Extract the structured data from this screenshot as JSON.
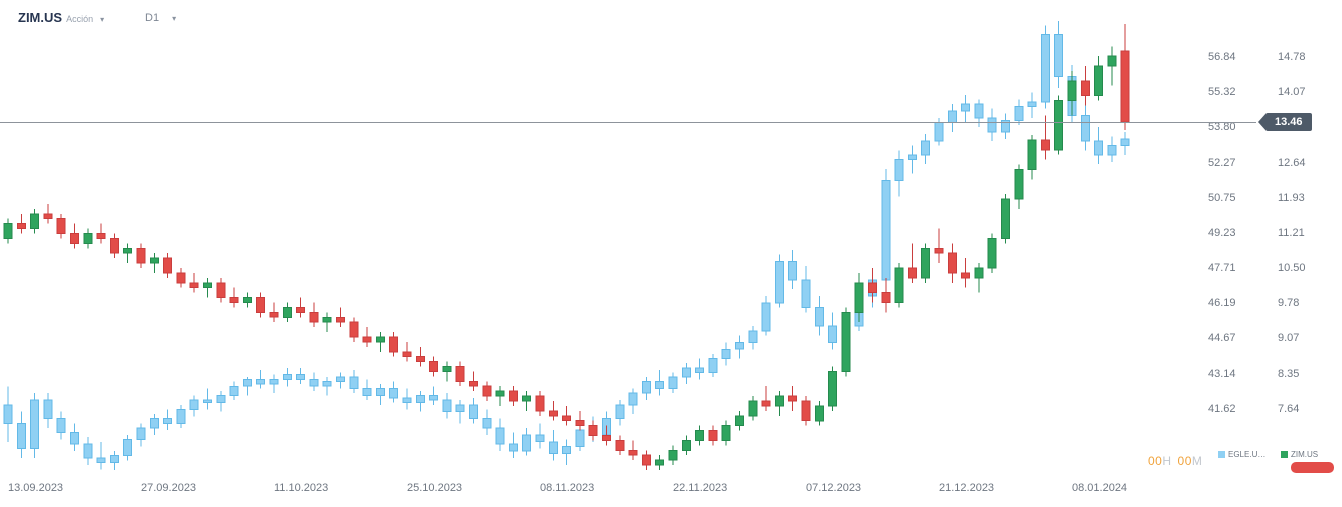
{
  "header": {
    "symbol": "ZIM.US",
    "instrument_label": "Acción",
    "timeframe": "D1"
  },
  "current_price_badge": {
    "value": "13.46"
  },
  "countdown": {
    "h_value": "00",
    "h_unit": "H",
    "m_value": "00",
    "m_unit": "M"
  },
  "legend": {
    "items": [
      {
        "label": "EGLE.U…",
        "color": "#8fd0f3"
      },
      {
        "label": "ZIM.US",
        "color": "#2fa45e"
      }
    ],
    "pill_color": "#e24c48"
  },
  "colors": {
    "up": "#2fa45e",
    "down": "#e24c48",
    "comparison": "#8fd0f3",
    "price_line": "#8d939b",
    "badge_bg": "#4e5a68",
    "tick_text": "#6e7681",
    "countdown_orange": "#f0a33c"
  },
  "chart_data": {
    "type": "candlestick",
    "timeframe": "D1",
    "title": "ZIM.US daily candles with EGLE.US comparison overlay",
    "grid": false,
    "current_price": 13.46,
    "x_labels": [
      {
        "index": 0,
        "label": "13.09.2023"
      },
      {
        "index": 10,
        "label": "27.09.2023"
      },
      {
        "index": 20,
        "label": "11.10.2023"
      },
      {
        "index": 30,
        "label": "25.10.2023"
      },
      {
        "index": 40,
        "label": "08.11.2023"
      },
      {
        "index": 50,
        "label": "22.11.2023"
      },
      {
        "index": 60,
        "label": "07.12.2023"
      },
      {
        "index": 70,
        "label": "21.12.2023"
      },
      {
        "index": 80,
        "label": "08.01.2024"
      }
    ],
    "axes": {
      "egle": {
        "min": 38.98,
        "max": 59.3,
        "ticks": [
          56.84,
          55.32,
          53.8,
          52.27,
          50.75,
          49.23,
          47.71,
          46.19,
          44.67,
          43.14,
          41.62
        ]
      },
      "zim": {
        "min": 6.4,
        "max": 15.94,
        "ticks": [
          14.78,
          14.07,
          12.64,
          11.93,
          11.21,
          10.5,
          9.78,
          9.07,
          8.35,
          7.64
        ]
      }
    },
    "series": [
      {
        "name": "EGLE.US",
        "axis": "egle",
        "up_fill": "#8fd0f3",
        "down_fill": "#8fd0f3",
        "up_stroke": "#63b9e7",
        "down_stroke": "#63b9e7",
        "candles": [
          [
            41.8,
            42.6,
            40.2,
            41.0
          ],
          [
            41.0,
            41.5,
            39.5,
            39.9
          ],
          [
            39.9,
            42.3,
            39.5,
            42.0
          ],
          [
            42.0,
            42.3,
            40.8,
            41.2
          ],
          [
            41.2,
            41.5,
            40.3,
            40.6
          ],
          [
            40.6,
            41.0,
            39.8,
            40.1
          ],
          [
            40.1,
            40.4,
            39.2,
            39.5
          ],
          [
            39.5,
            40.2,
            39.0,
            39.3
          ],
          [
            39.3,
            39.8,
            38.9,
            39.6
          ],
          [
            39.6,
            40.5,
            39.4,
            40.3
          ],
          [
            40.3,
            41.0,
            40.0,
            40.8
          ],
          [
            40.8,
            41.4,
            40.5,
            41.2
          ],
          [
            41.2,
            41.6,
            40.7,
            41.0
          ],
          [
            41.0,
            41.8,
            40.8,
            41.6
          ],
          [
            41.6,
            42.2,
            41.3,
            42.0
          ],
          [
            42.0,
            42.5,
            41.6,
            41.9
          ],
          [
            41.9,
            42.4,
            41.5,
            42.2
          ],
          [
            42.2,
            42.8,
            42.0,
            42.6
          ],
          [
            42.6,
            43.0,
            42.2,
            42.9
          ],
          [
            42.9,
            43.3,
            42.5,
            42.7
          ],
          [
            42.7,
            43.1,
            42.3,
            42.9
          ],
          [
            42.9,
            43.4,
            42.6,
            43.1
          ],
          [
            43.1,
            43.4,
            42.7,
            42.9
          ],
          [
            42.9,
            43.2,
            42.4,
            42.6
          ],
          [
            42.6,
            43.0,
            42.2,
            42.8
          ],
          [
            42.8,
            43.2,
            42.5,
            43.0
          ],
          [
            43.0,
            43.3,
            42.3,
            42.5
          ],
          [
            42.5,
            42.9,
            42.0,
            42.2
          ],
          [
            42.2,
            42.7,
            41.8,
            42.5
          ],
          [
            42.5,
            42.8,
            41.9,
            42.1
          ],
          [
            42.1,
            42.5,
            41.6,
            41.9
          ],
          [
            41.9,
            42.4,
            41.5,
            42.2
          ],
          [
            42.2,
            42.6,
            41.8,
            42.0
          ],
          [
            42.0,
            42.3,
            41.2,
            41.5
          ],
          [
            41.5,
            42.0,
            41.0,
            41.8
          ],
          [
            41.8,
            42.1,
            41.0,
            41.2
          ],
          [
            41.2,
            41.6,
            40.5,
            40.8
          ],
          [
            40.8,
            41.2,
            39.8,
            40.1
          ],
          [
            40.1,
            40.6,
            39.5,
            39.8
          ],
          [
            39.8,
            40.8,
            39.6,
            40.5
          ],
          [
            40.5,
            41.0,
            39.9,
            40.2
          ],
          [
            40.2,
            40.7,
            39.4,
            39.7
          ],
          [
            39.7,
            40.3,
            39.2,
            40.0
          ],
          [
            40.0,
            40.9,
            39.8,
            40.7
          ],
          [
            40.7,
            41.3,
            40.2,
            40.5
          ],
          [
            40.5,
            41.5,
            40.3,
            41.2
          ],
          [
            41.2,
            42.0,
            40.9,
            41.8
          ],
          [
            41.8,
            42.5,
            41.4,
            42.3
          ],
          [
            42.3,
            43.0,
            42.0,
            42.8
          ],
          [
            42.8,
            43.3,
            42.2,
            42.5
          ],
          [
            42.5,
            43.2,
            42.3,
            43.0
          ],
          [
            43.0,
            43.6,
            42.7,
            43.4
          ],
          [
            43.4,
            43.8,
            42.9,
            43.2
          ],
          [
            43.2,
            44.0,
            43.0,
            43.8
          ],
          [
            43.8,
            44.5,
            43.5,
            44.2
          ],
          [
            44.2,
            44.8,
            43.8,
            44.5
          ],
          [
            44.5,
            45.2,
            44.2,
            45.0
          ],
          [
            45.0,
            46.5,
            44.8,
            46.2
          ],
          [
            46.2,
            48.3,
            46.0,
            48.0
          ],
          [
            48.0,
            48.5,
            46.8,
            47.2
          ],
          [
            47.2,
            47.8,
            45.8,
            46.0
          ],
          [
            46.0,
            46.5,
            44.8,
            45.2
          ],
          [
            45.2,
            45.8,
            44.2,
            44.5
          ],
          [
            44.5,
            45.5,
            44.0,
            45.2
          ],
          [
            45.2,
            46.8,
            45.0,
            46.5
          ],
          [
            46.5,
            47.5,
            46.0,
            47.2
          ],
          [
            47.2,
            52.0,
            47.0,
            51.5
          ],
          [
            51.5,
            52.8,
            50.8,
            52.4
          ],
          [
            52.4,
            53.0,
            51.8,
            52.6
          ],
          [
            52.6,
            53.5,
            52.2,
            53.2
          ],
          [
            53.2,
            54.2,
            53.0,
            54.0
          ],
          [
            54.0,
            54.8,
            53.6,
            54.5
          ],
          [
            54.5,
            55.2,
            54.0,
            54.8
          ],
          [
            54.8,
            55.0,
            53.8,
            54.2
          ],
          [
            54.2,
            54.6,
            53.2,
            53.6
          ],
          [
            53.6,
            54.4,
            53.3,
            54.1
          ],
          [
            54.1,
            55.0,
            53.9,
            54.7
          ],
          [
            54.7,
            55.3,
            54.2,
            54.9
          ],
          [
            54.9,
            58.2,
            54.6,
            57.8
          ],
          [
            57.8,
            58.4,
            55.5,
            56.0
          ],
          [
            56.0,
            56.5,
            54.0,
            54.3
          ],
          [
            54.3,
            54.8,
            52.8,
            53.2
          ],
          [
            53.2,
            53.8,
            52.2,
            52.6
          ],
          [
            52.6,
            53.4,
            52.3,
            53.0
          ],
          [
            53.0,
            53.6,
            52.6,
            53.3
          ]
        ]
      },
      {
        "name": "ZIM.US",
        "axis": "zim",
        "up_fill": "#2fa45e",
        "down_fill": "#e24c48",
        "up_stroke": "#258a4e",
        "down_stroke": "#c93e3e",
        "candles": [
          [
            11.1,
            11.5,
            11.0,
            11.4
          ],
          [
            11.4,
            11.6,
            11.2,
            11.3
          ],
          [
            11.3,
            11.7,
            11.2,
            11.6
          ],
          [
            11.6,
            11.8,
            11.4,
            11.5
          ],
          [
            11.5,
            11.6,
            11.1,
            11.2
          ],
          [
            11.2,
            11.4,
            10.9,
            11.0
          ],
          [
            11.0,
            11.3,
            10.9,
            11.2
          ],
          [
            11.2,
            11.4,
            11.0,
            11.1
          ],
          [
            11.1,
            11.2,
            10.7,
            10.8
          ],
          [
            10.8,
            11.0,
            10.6,
            10.9
          ],
          [
            10.9,
            11.0,
            10.5,
            10.6
          ],
          [
            10.6,
            10.8,
            10.4,
            10.7
          ],
          [
            10.7,
            10.8,
            10.3,
            10.4
          ],
          [
            10.4,
            10.5,
            10.1,
            10.2
          ],
          [
            10.2,
            10.4,
            10.0,
            10.1
          ],
          [
            10.1,
            10.3,
            9.9,
            10.2
          ],
          [
            10.2,
            10.3,
            9.8,
            9.9
          ],
          [
            9.9,
            10.1,
            9.7,
            9.8
          ],
          [
            9.8,
            10.0,
            9.7,
            9.9
          ],
          [
            9.9,
            10.0,
            9.5,
            9.6
          ],
          [
            9.6,
            9.8,
            9.4,
            9.5
          ],
          [
            9.5,
            9.8,
            9.4,
            9.7
          ],
          [
            9.7,
            9.9,
            9.5,
            9.6
          ],
          [
            9.6,
            9.8,
            9.3,
            9.4
          ],
          [
            9.4,
            9.6,
            9.2,
            9.5
          ],
          [
            9.5,
            9.7,
            9.3,
            9.4
          ],
          [
            9.4,
            9.5,
            9.0,
            9.1
          ],
          [
            9.1,
            9.3,
            8.9,
            9.0
          ],
          [
            9.0,
            9.2,
            8.8,
            9.1
          ],
          [
            9.1,
            9.2,
            8.7,
            8.8
          ],
          [
            8.8,
            9.0,
            8.6,
            8.7
          ],
          [
            8.7,
            8.9,
            8.5,
            8.6
          ],
          [
            8.6,
            8.7,
            8.3,
            8.4
          ],
          [
            8.4,
            8.6,
            8.2,
            8.5
          ],
          [
            8.5,
            8.6,
            8.1,
            8.2
          ],
          [
            8.2,
            8.4,
            8.0,
            8.1
          ],
          [
            8.1,
            8.2,
            7.8,
            7.9
          ],
          [
            7.9,
            8.1,
            7.7,
            8.0
          ],
          [
            8.0,
            8.1,
            7.7,
            7.8
          ],
          [
            7.8,
            8.0,
            7.6,
            7.9
          ],
          [
            7.9,
            8.0,
            7.5,
            7.6
          ],
          [
            7.6,
            7.8,
            7.4,
            7.5
          ],
          [
            7.5,
            7.7,
            7.3,
            7.4
          ],
          [
            7.4,
            7.6,
            7.2,
            7.3
          ],
          [
            7.3,
            7.4,
            7.0,
            7.1
          ],
          [
            7.1,
            7.3,
            6.9,
            7.0
          ],
          [
            7.0,
            7.1,
            6.7,
            6.8
          ],
          [
            6.8,
            7.0,
            6.6,
            6.7
          ],
          [
            6.7,
            6.8,
            6.4,
            6.5
          ],
          [
            6.5,
            6.7,
            6.3,
            6.6
          ],
          [
            6.6,
            6.9,
            6.5,
            6.8
          ],
          [
            6.8,
            7.1,
            6.7,
            7.0
          ],
          [
            7.0,
            7.3,
            6.9,
            7.2
          ],
          [
            7.2,
            7.3,
            6.9,
            7.0
          ],
          [
            7.0,
            7.4,
            6.9,
            7.3
          ],
          [
            7.3,
            7.6,
            7.2,
            7.5
          ],
          [
            7.5,
            7.9,
            7.4,
            7.8
          ],
          [
            7.8,
            8.1,
            7.6,
            7.7
          ],
          [
            7.7,
            8.0,
            7.5,
            7.9
          ],
          [
            7.9,
            8.1,
            7.6,
            7.8
          ],
          [
            7.8,
            7.9,
            7.3,
            7.4
          ],
          [
            7.4,
            7.8,
            7.3,
            7.7
          ],
          [
            7.7,
            8.5,
            7.6,
            8.4
          ],
          [
            8.4,
            9.7,
            8.3,
            9.6
          ],
          [
            9.6,
            10.4,
            9.4,
            10.2
          ],
          [
            10.2,
            10.5,
            9.8,
            10.0
          ],
          [
            10.0,
            10.3,
            9.6,
            9.8
          ],
          [
            9.8,
            10.6,
            9.7,
            10.5
          ],
          [
            10.5,
            11.0,
            10.2,
            10.3
          ],
          [
            10.3,
            11.0,
            10.2,
            10.9
          ],
          [
            10.9,
            11.3,
            10.6,
            10.8
          ],
          [
            10.8,
            11.0,
            10.2,
            10.4
          ],
          [
            10.4,
            10.7,
            10.1,
            10.3
          ],
          [
            10.3,
            10.6,
            10.0,
            10.5
          ],
          [
            10.5,
            11.2,
            10.4,
            11.1
          ],
          [
            11.1,
            12.0,
            11.0,
            11.9
          ],
          [
            11.9,
            12.6,
            11.7,
            12.5
          ],
          [
            12.5,
            13.2,
            12.3,
            13.1
          ],
          [
            13.1,
            13.6,
            12.7,
            12.9
          ],
          [
            12.9,
            14.0,
            12.8,
            13.9
          ],
          [
            13.9,
            14.5,
            13.6,
            14.3
          ],
          [
            14.3,
            14.6,
            13.8,
            14.0
          ],
          [
            14.0,
            14.8,
            13.9,
            14.6
          ],
          [
            14.6,
            15.0,
            14.2,
            14.8
          ],
          [
            14.9,
            15.45,
            13.3,
            13.46
          ]
        ]
      }
    ]
  }
}
